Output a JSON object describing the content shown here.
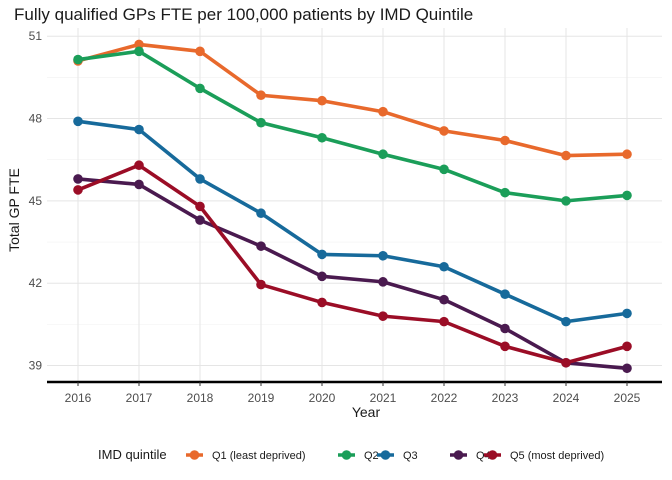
{
  "chart_data": {
    "type": "line",
    "title": "Fully qualified GPs FTE per 100,000 patients by IMD Quintile",
    "xlabel": "Year",
    "ylabel": "Total GP FTE",
    "x": [
      "2016",
      "2017",
      "2018",
      "2019",
      "2020",
      "2021",
      "2022",
      "2023",
      "2024",
      "2025"
    ],
    "yticks": [
      39,
      42,
      45,
      48,
      51
    ],
    "ylim": [
      38.4,
      51.3
    ],
    "grid": true,
    "legend": {
      "title": "IMD quintile",
      "position": "bottom"
    },
    "series": [
      {
        "name": "Q1 (least deprived)",
        "color": "#E8692C",
        "values": [
          50.1,
          50.7,
          50.45,
          48.85,
          48.65,
          48.25,
          47.55,
          47.2,
          46.65,
          46.7
        ]
      },
      {
        "name": "Q2",
        "color": "#1B9E59",
        "values": [
          50.15,
          50.45,
          49.1,
          47.85,
          47.3,
          46.7,
          46.15,
          45.3,
          45.0,
          45.2
        ]
      },
      {
        "name": "Q3",
        "color": "#176A9B",
        "values": [
          47.9,
          47.6,
          45.8,
          44.55,
          43.05,
          43.0,
          42.6,
          41.6,
          40.6,
          40.9
        ]
      },
      {
        "name": "Q4",
        "color": "#4A1A4F",
        "values": [
          45.8,
          45.6,
          44.3,
          43.35,
          42.25,
          42.05,
          41.4,
          40.35,
          39.1,
          38.9
        ]
      },
      {
        "name": "Q5 (most deprived)",
        "color": "#9B0D26",
        "values": [
          45.4,
          46.3,
          44.8,
          41.95,
          41.3,
          40.8,
          40.6,
          39.7,
          39.1,
          39.7
        ]
      }
    ]
  }
}
